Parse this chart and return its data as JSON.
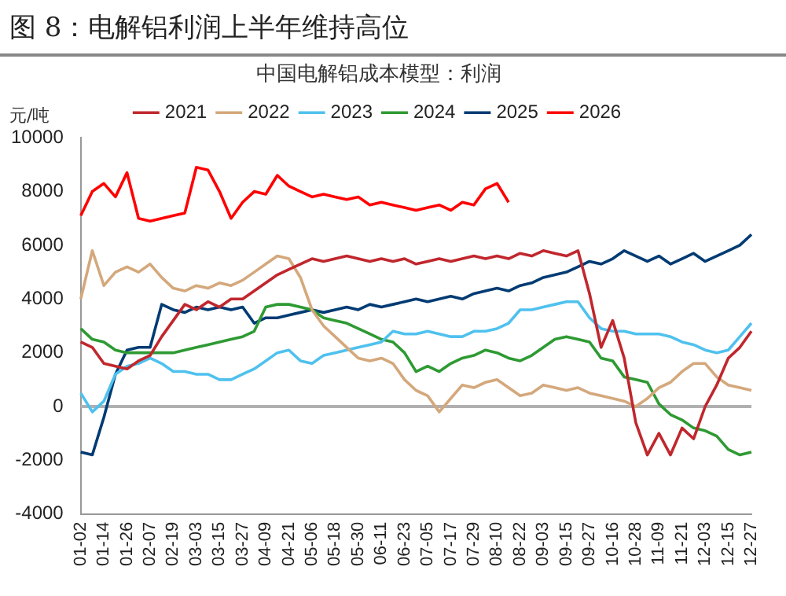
{
  "chart_data": {
    "type": "line",
    "title": "图 8：电解铝利润上半年维持高位",
    "subtitle": "中国电解铝成本模型：利润",
    "ylabel": "元/吨",
    "categories": [
      "01-02",
      null,
      "01-14",
      null,
      "01-26",
      null,
      "02-07",
      null,
      "02-19",
      null,
      "03-03",
      null,
      "03-15",
      null,
      "03-27",
      null,
      "04-09",
      null,
      "04-21",
      null,
      "05-06",
      null,
      "05-18",
      null,
      "05-30",
      null,
      "06-11",
      null,
      "06-23",
      null,
      "07-05",
      null,
      "07-17",
      null,
      "07-29",
      null,
      "08-10",
      null,
      "08-22",
      null,
      "09-03",
      null,
      "09-15",
      null,
      "09-27",
      null,
      "10-16",
      null,
      "10-28",
      null,
      "11-09",
      null,
      "11-21",
      null,
      "12-03",
      null,
      "12-15",
      null,
      "12-27"
    ],
    "series": [
      {
        "name": "2021",
        "color": "#c0272d",
        "values": [
          2400,
          2200,
          1600,
          1500,
          1400,
          1700,
          1900,
          2600,
          3200,
          3800,
          3600,
          3900,
          3700,
          4000,
          4000,
          4300,
          4600,
          4900,
          5100,
          5300,
          5500,
          5400,
          5500,
          5600,
          5500,
          5400,
          5500,
          5400,
          5500,
          5300,
          5400,
          5500,
          5400,
          5500,
          5600,
          5500,
          5600,
          5500,
          5700,
          5600,
          5800,
          5700,
          5600,
          5800,
          4200,
          2200,
          3200,
          1800,
          -600,
          -1800,
          -1000,
          -1800,
          -800,
          -1200,
          0,
          800,
          1800,
          2200,
          2800
        ]
      },
      {
        "name": "2022",
        "color": "#d4a87c",
        "values": [
          4000,
          5800,
          4500,
          5000,
          5200,
          5000,
          5300,
          4800,
          4400,
          4300,
          4500,
          4400,
          4600,
          4500,
          4700,
          5000,
          5300,
          5600,
          5500,
          4800,
          3600,
          3000,
          2600,
          2200,
          1800,
          1700,
          1800,
          1600,
          1000,
          600,
          400,
          -200,
          300,
          800,
          700,
          900,
          1000,
          700,
          400,
          500,
          800,
          700,
          600,
          700,
          500,
          400,
          300,
          200,
          0,
          300,
          700,
          900,
          1300,
          1600,
          1600,
          1100,
          800,
          700,
          600
        ]
      },
      {
        "name": "2023",
        "color": "#4fc1ee",
        "values": [
          500,
          -200,
          200,
          1200,
          1500,
          1600,
          1800,
          1600,
          1300,
          1300,
          1200,
          1200,
          1000,
          1000,
          1200,
          1400,
          1700,
          2000,
          2100,
          1700,
          1600,
          1900,
          2000,
          2100,
          2200,
          2300,
          2400,
          2800,
          2700,
          2700,
          2800,
          2700,
          2600,
          2600,
          2800,
          2800,
          2900,
          3100,
          3600,
          3600,
          3700,
          3800,
          3900,
          3900,
          3300,
          2900,
          2800,
          2800,
          2700,
          2700,
          2700,
          2600,
          2400,
          2300,
          2100,
          2000,
          2100,
          2600,
          3100
        ]
      },
      {
        "name": "2024",
        "color": "#2e9a33",
        "values": [
          2900,
          2500,
          2400,
          2100,
          2000,
          2000,
          2000,
          2000,
          2000,
          2100,
          2200,
          2300,
          2400,
          2500,
          2600,
          2800,
          3700,
          3800,
          3800,
          3700,
          3600,
          3300,
          3200,
          3100,
          2900,
          2700,
          2500,
          2400,
          2000,
          1300,
          1500,
          1300,
          1600,
          1800,
          1900,
          2100,
          2000,
          1800,
          1700,
          1900,
          2200,
          2500,
          2600,
          2500,
          2400,
          1800,
          1700,
          1100,
          1000,
          900,
          100,
          -300,
          -500,
          -800,
          -900,
          -1100,
          -1600,
          -1800,
          -1700
        ]
      },
      {
        "name": "2025",
        "color": "#003b73",
        "values": [
          -1700,
          -1800,
          -400,
          1200,
          2100,
          2200,
          2200,
          3800,
          3600,
          3500,
          3700,
          3600,
          3700,
          3600,
          3700,
          3100,
          3300,
          3300,
          3400,
          3500,
          3600,
          3500,
          3600,
          3700,
          3600,
          3800,
          3700,
          3800,
          3900,
          4000,
          3900,
          4000,
          4100,
          4000,
          4200,
          4300,
          4400,
          4300,
          4500,
          4600,
          4800,
          4900,
          5000,
          5200,
          5400,
          5300,
          5500,
          5800,
          5600,
          5400,
          5600,
          5300,
          5500,
          5700,
          5400,
          5600,
          5800,
          6000,
          6400
        ]
      },
      {
        "name": "2026",
        "color": "#ff0000",
        "values": [
          7100,
          8000,
          8300,
          7800,
          8700,
          7000,
          6900,
          7000,
          7100,
          7200,
          8900,
          8800,
          8000,
          7000,
          7600,
          8000,
          7900,
          8600,
          8200,
          8000,
          7800,
          7900,
          7800,
          7700,
          7800,
          7500,
          7600,
          7500,
          7400,
          7300,
          7400,
          7500,
          7300,
          7600,
          7500,
          8100,
          8300,
          7600,
          null,
          null,
          null,
          null,
          null,
          null,
          null,
          null,
          null,
          null,
          null,
          null,
          null,
          null,
          null,
          null,
          null,
          null,
          null,
          null,
          null
        ]
      }
    ],
    "ylim": [
      -4000,
      10000
    ],
    "yticks": [
      -4000,
      -2000,
      0,
      2000,
      4000,
      6000,
      8000,
      10000
    ],
    "ref_lines": [
      {
        "axis": "y",
        "value": 0,
        "color": "#b0b0b0"
      }
    ],
    "legend": "top",
    "grid": false,
    "marker": "none",
    "line_style": "solid"
  }
}
